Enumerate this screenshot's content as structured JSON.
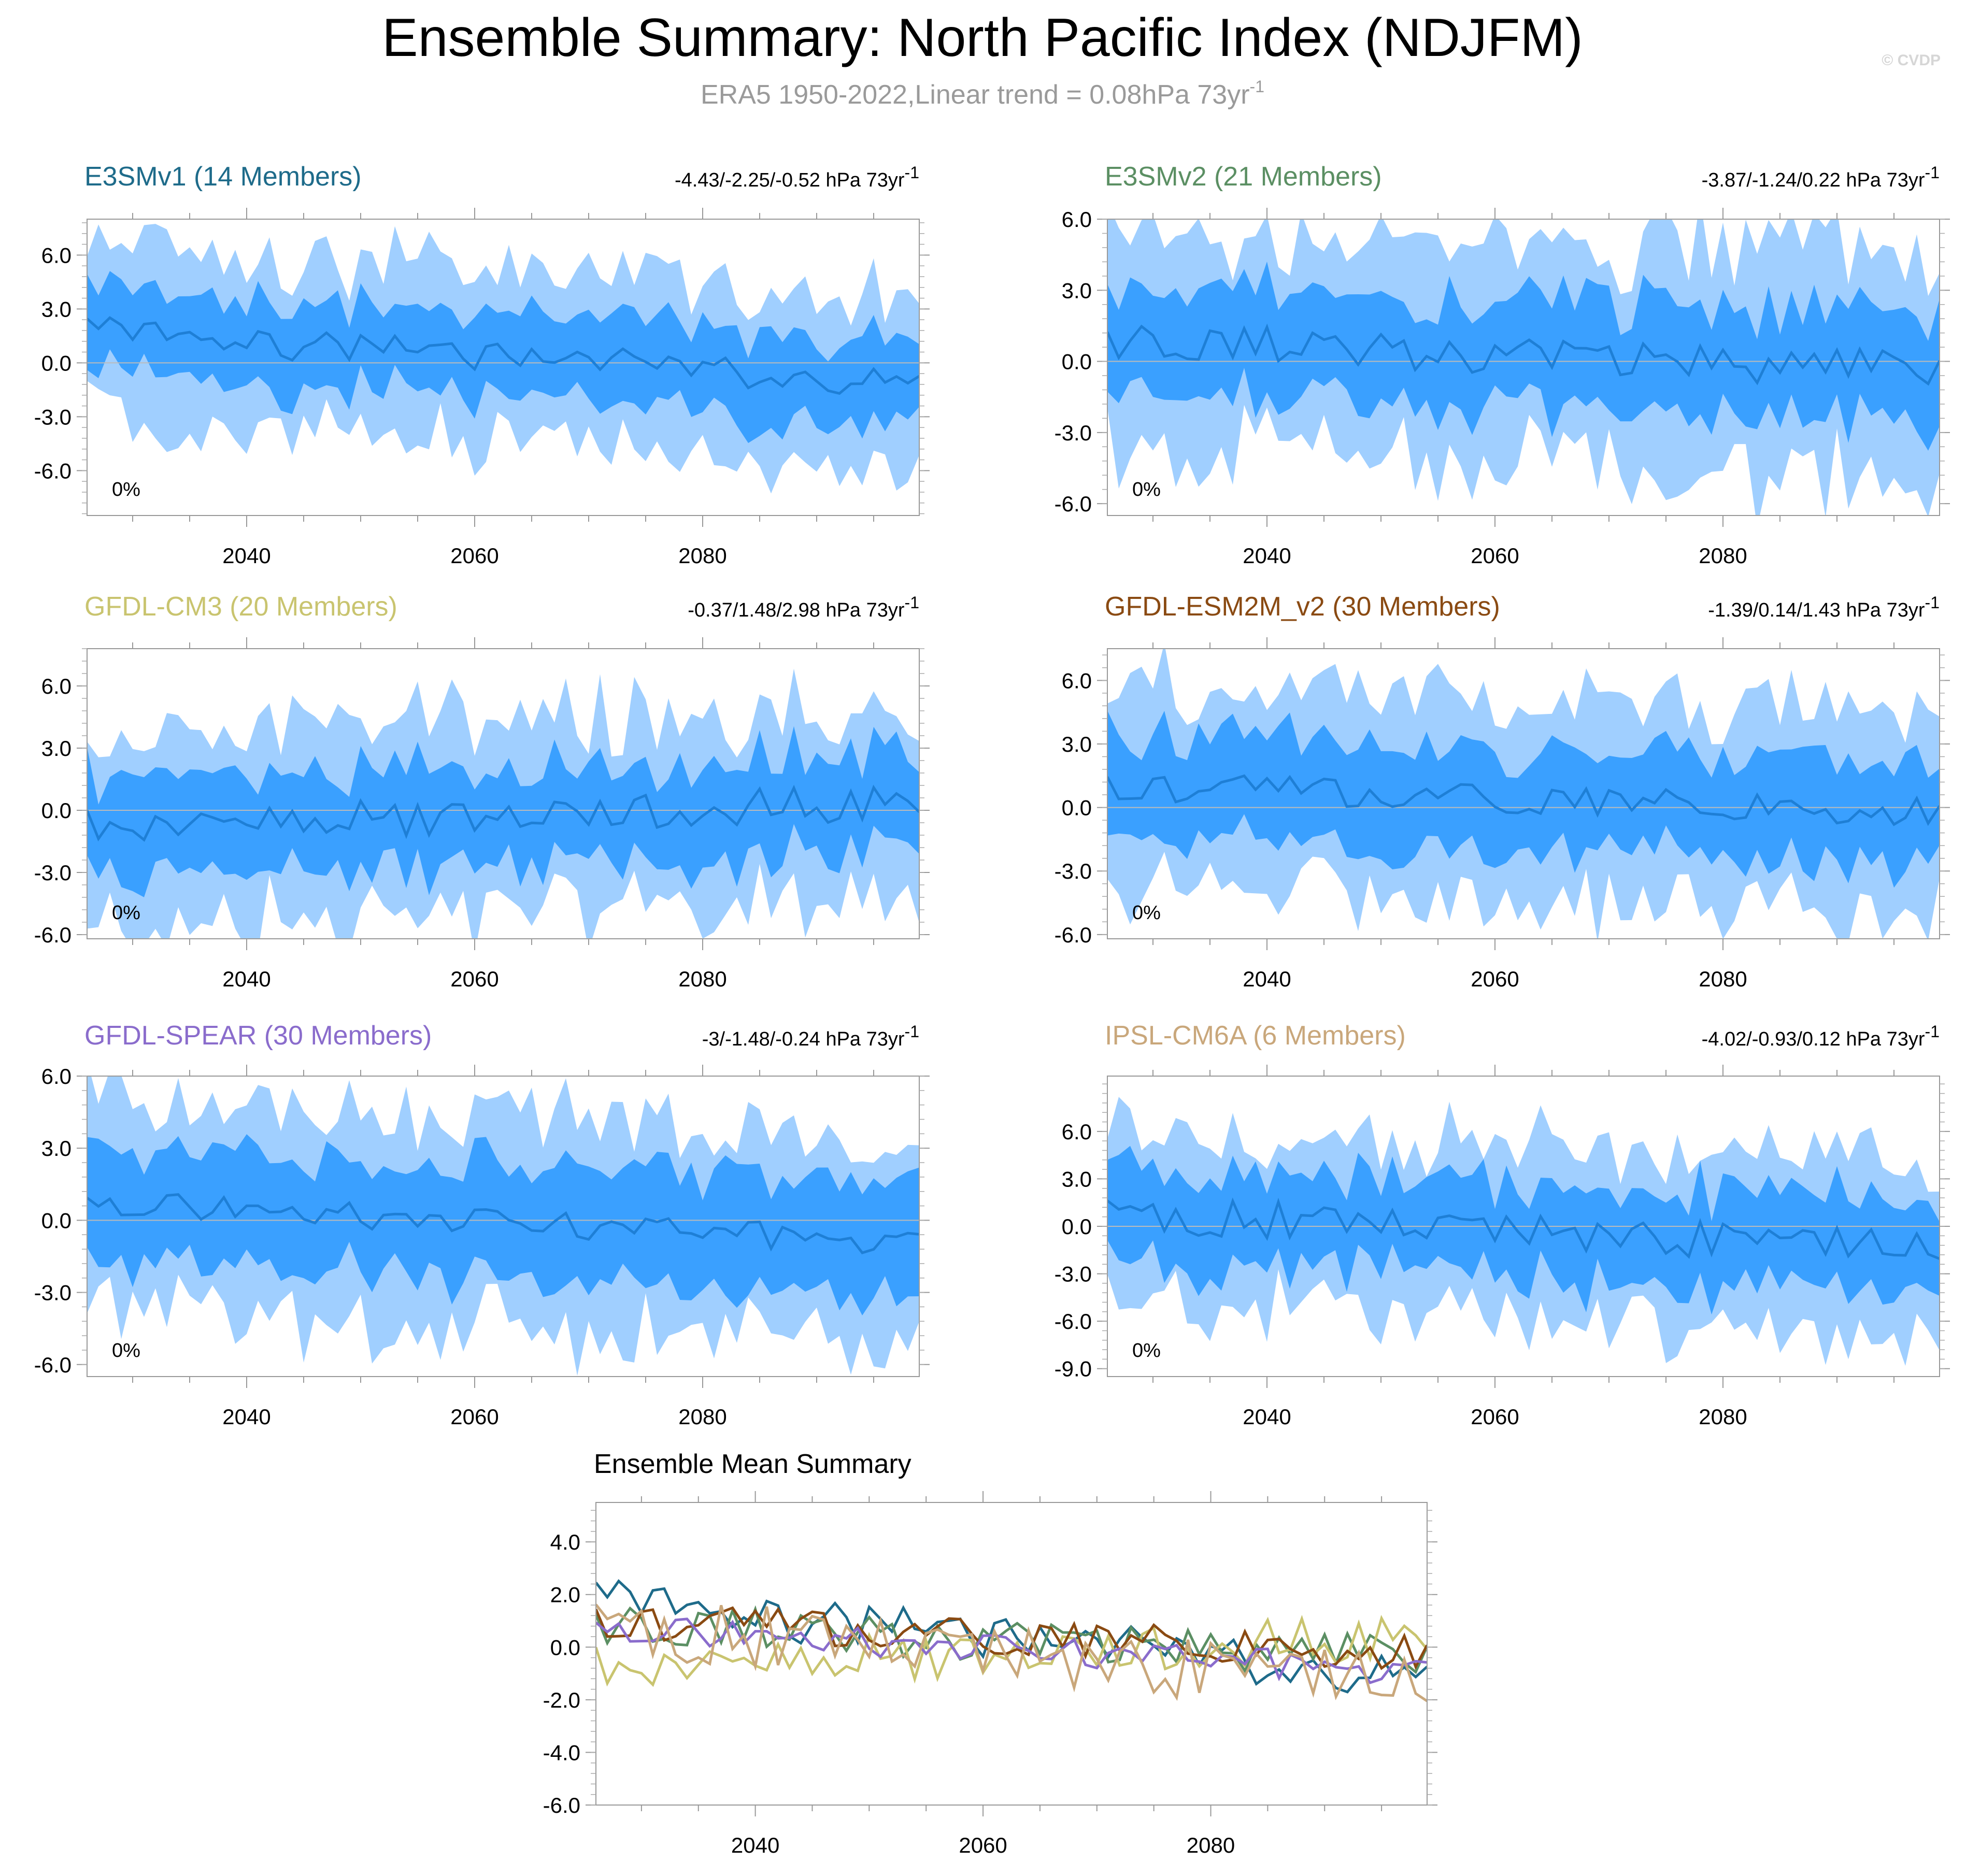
{
  "title": "Ensemble Summary: North Pacific Index (NDJFM)",
  "subtitle": "ERA5 1950-2022,Linear trend = 0.08hPa 73yr",
  "subtitle_sup": "-1",
  "watermark": "© CVDP",
  "colors": {
    "band_outer": "#a0cfff",
    "band_inner": "#3aa0ff",
    "mean_line": "#1e7fd6",
    "zero_line": "#bbbbbb"
  },
  "chart_data": [
    {
      "type": "area",
      "title": "E3SMv1 (14 Members)",
      "title_color": "#1e6b8a",
      "trend": "-4.43/-2.25/-0.52 hPa 73yr",
      "trend_sup": "-1",
      "percent": "0%",
      "xlim": [
        2026,
        2099
      ],
      "ylim": [
        -8.5,
        8.0
      ],
      "xticks": [
        "2040",
        "2060",
        "2080"
      ],
      "yticks": [
        "6.0",
        "3.0",
        "0.0",
        "-3.0",
        "-6.0"
      ],
      "ytick_values": [
        6,
        3,
        0,
        -3,
        -6
      ],
      "seed": 11,
      "spread_outer": 4.6,
      "spread_inner": 2.2,
      "mean_start": 1.7,
      "mean_end": -1.1,
      "noise": 0.9,
      "pos": 0
    },
    {
      "type": "area",
      "title": "E3SMv2 (21 Members)",
      "title_color": "#5b8f63",
      "trend": "-3.87/-1.24/0.22 hPa 73yr",
      "trend_sup": "-1",
      "percent": "0%",
      "xlim": [
        2026,
        2099
      ],
      "ylim": [
        -6.5,
        6.0
      ],
      "xticks": [
        "2040",
        "2060",
        "2080"
      ],
      "yticks": [
        "6.0",
        "3.0",
        "0.0",
        "-3.0",
        "-6.0"
      ],
      "ytick_values": [
        6,
        3,
        0,
        -3,
        -6
      ],
      "seed": 23,
      "spread_outer": 4.5,
      "spread_inner": 2.2,
      "mean_start": 0.9,
      "mean_end": -0.4,
      "noise": 0.8,
      "pos": 1
    },
    {
      "type": "area",
      "title": "GFDL-CM3 (20 Members)",
      "title_color": "#c9c46f",
      "trend": "-0.37/1.48/2.98 hPa 73yr",
      "trend_sup": "-1",
      "percent": "0%",
      "xlim": [
        2026,
        2099
      ],
      "ylim": [
        -6.2,
        7.8
      ],
      "xticks": [
        "2040",
        "2060",
        "2080"
      ],
      "yticks": [
        "6.0",
        "3.0",
        "0.0",
        "-3.0",
        "-6.0"
      ],
      "ytick_values": [
        6,
        3,
        0,
        -3,
        -6
      ],
      "seed": 37,
      "spread_outer": 4.4,
      "spread_inner": 2.2,
      "mean_start": -0.8,
      "mean_end": 0.4,
      "noise": 0.9,
      "pos": 2
    },
    {
      "type": "area",
      "title": "GFDL-ESM2M_v2 (30 Members)",
      "title_color": "#8a4a12",
      "trend": "-1.39/0.14/1.43 hPa 73yr",
      "trend_sup": "-1",
      "percent": "0%",
      "xlim": [
        2026,
        2099
      ],
      "ylim": [
        -6.2,
        7.5
      ],
      "xticks": [
        "2040",
        "2060",
        "2080"
      ],
      "yticks": [
        "6.0",
        "3.0",
        "0.0",
        "-3.0",
        "-6.0"
      ],
      "ytick_values": [
        6,
        3,
        0,
        -3,
        -6
      ],
      "seed": 41,
      "spread_outer": 4.6,
      "spread_inner": 2.3,
      "mean_start": 1.0,
      "mean_end": -0.2,
      "noise": 0.7,
      "pos": 3
    },
    {
      "type": "area",
      "title": "GFDL-SPEAR (30 Members)",
      "title_color": "#8a6ccc",
      "trend": "-3/-1.48/-0.24 hPa 73yr",
      "trend_sup": "-1",
      "percent": "0%",
      "xlim": [
        2026,
        2099
      ],
      "ylim": [
        -6.5,
        6.0
      ],
      "xticks": [
        "2040",
        "2060",
        "2080"
      ],
      "yticks": [
        "6.0",
        "3.0",
        "0.0",
        "-3.0",
        "-6.0"
      ],
      "ytick_values": [
        6,
        3,
        0,
        -3,
        -6
      ],
      "seed": 53,
      "spread_outer": 4.3,
      "spread_inner": 2.2,
      "mean_start": 0.8,
      "mean_end": -0.9,
      "noise": 0.6,
      "pos": 4
    },
    {
      "type": "area",
      "title": "IPSL-CM6A (6 Members)",
      "title_color": "#c9a77b",
      "trend": "-4.02/-0.93/0.12 hPa 73yr",
      "trend_sup": "-1",
      "percent": "0%",
      "xlim": [
        2026,
        2099
      ],
      "ylim": [
        -9.5,
        9.5
      ],
      "xticks": [
        "2040",
        "2060",
        "2080"
      ],
      "yticks": [
        "6.0",
        "3.0",
        "0.0",
        "-3.0",
        "-6.0",
        "-9.0"
      ],
      "ytick_values": [
        6,
        3,
        0,
        -3,
        -6,
        -9
      ],
      "seed": 67,
      "spread_outer": 5.2,
      "spread_inner": 2.8,
      "mean_start": 0.8,
      "mean_end": -1.4,
      "noise": 1.2,
      "pos": 5
    },
    {
      "type": "line",
      "title": "Ensemble Mean Summary",
      "xlim": [
        2026,
        2099
      ],
      "ylim": [
        -6.0,
        5.5
      ],
      "xticks": [
        "2040",
        "2060",
        "2080"
      ],
      "yticks": [
        "4.0",
        "2.0",
        "0.0",
        "-2.0",
        "-4.0",
        "-6.0"
      ],
      "ytick_values": [
        4,
        2,
        0,
        -2,
        -4,
        -6
      ],
      "series": [
        {
          "name": "E3SMv1",
          "color": "#1e6b8a",
          "seed": 11
        },
        {
          "name": "E3SMv2",
          "color": "#5b8f63",
          "seed": 23
        },
        {
          "name": "GFDL-CM3",
          "color": "#c9c46f",
          "seed": 37
        },
        {
          "name": "GFDL-ESM2M_v2",
          "color": "#8a4a12",
          "seed": 41
        },
        {
          "name": "GFDL-SPEAR",
          "color": "#8a6ccc",
          "seed": 53
        },
        {
          "name": "IPSL-CM6A",
          "color": "#c9a77b",
          "seed": 67
        }
      ]
    }
  ]
}
